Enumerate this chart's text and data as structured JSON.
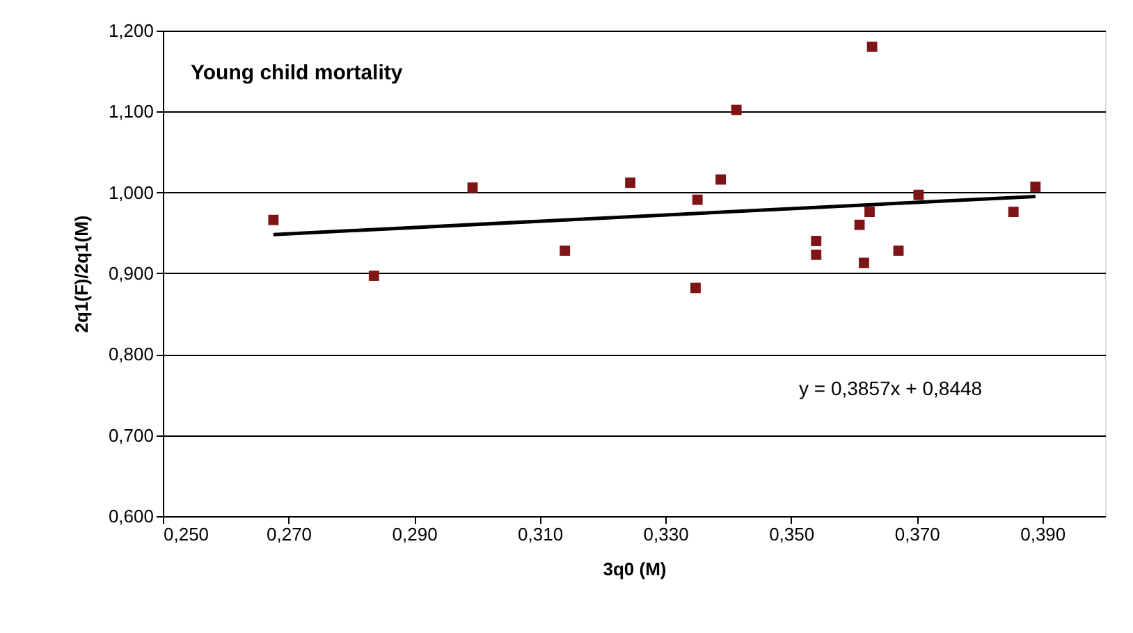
{
  "chart_data": {
    "type": "scatter",
    "title": "Young child mortality",
    "xlabel": "3q0 (M)",
    "ylabel": "2q1(F)/2q1(M)",
    "xlim": [
      0.25,
      0.4
    ],
    "xticks": [
      {
        "value": 0.25,
        "label": "0,250"
      },
      {
        "value": 0.27,
        "label": "0,270"
      },
      {
        "value": 0.29,
        "label": "0,290"
      },
      {
        "value": 0.31,
        "label": "0,310"
      },
      {
        "value": 0.33,
        "label": "0,330"
      },
      {
        "value": 0.35,
        "label": "0,350"
      },
      {
        "value": 0.37,
        "label": "0,370"
      },
      {
        "value": 0.39,
        "label": "0,390"
      }
    ],
    "ylim": [
      0.6,
      1.2
    ],
    "yticks": [
      {
        "value": 0.6,
        "label": "0,600"
      },
      {
        "value": 0.7,
        "label": "0,700"
      },
      {
        "value": 0.8,
        "label": "0,800"
      },
      {
        "value": 0.9,
        "label": "0,900"
      },
      {
        "value": 1.0,
        "label": "1,000"
      },
      {
        "value": 1.1,
        "label": "1,100"
      },
      {
        "value": 1.2,
        "label": "1,200"
      }
    ],
    "grid": "y",
    "annotations": [
      "y = 0,3857x + 0,8448"
    ],
    "series": [
      {
        "marker": "square",
        "color": "#7f1416",
        "x": [
          0.2676,
          0.2836,
          0.2993,
          0.314,
          0.3244,
          0.3351,
          0.3348,
          0.3388,
          0.3413,
          0.354,
          0.354,
          0.3609,
          0.3616,
          0.3625,
          0.3629,
          0.3671,
          0.3703,
          0.3854,
          0.3889
        ],
        "values": [
          0.966,
          0.897,
          1.006,
          0.928,
          1.012,
          0.991,
          0.882,
          1.016,
          1.102,
          0.94,
          0.923,
          0.96,
          0.913,
          0.976,
          1.18,
          0.928,
          0.997,
          0.976,
          1.007
        ]
      },
      {
        "type": "line",
        "color": "#000000",
        "x": [
          0.2676,
          0.3889
        ],
        "values": [
          0.948,
          0.995
        ]
      }
    ]
  }
}
